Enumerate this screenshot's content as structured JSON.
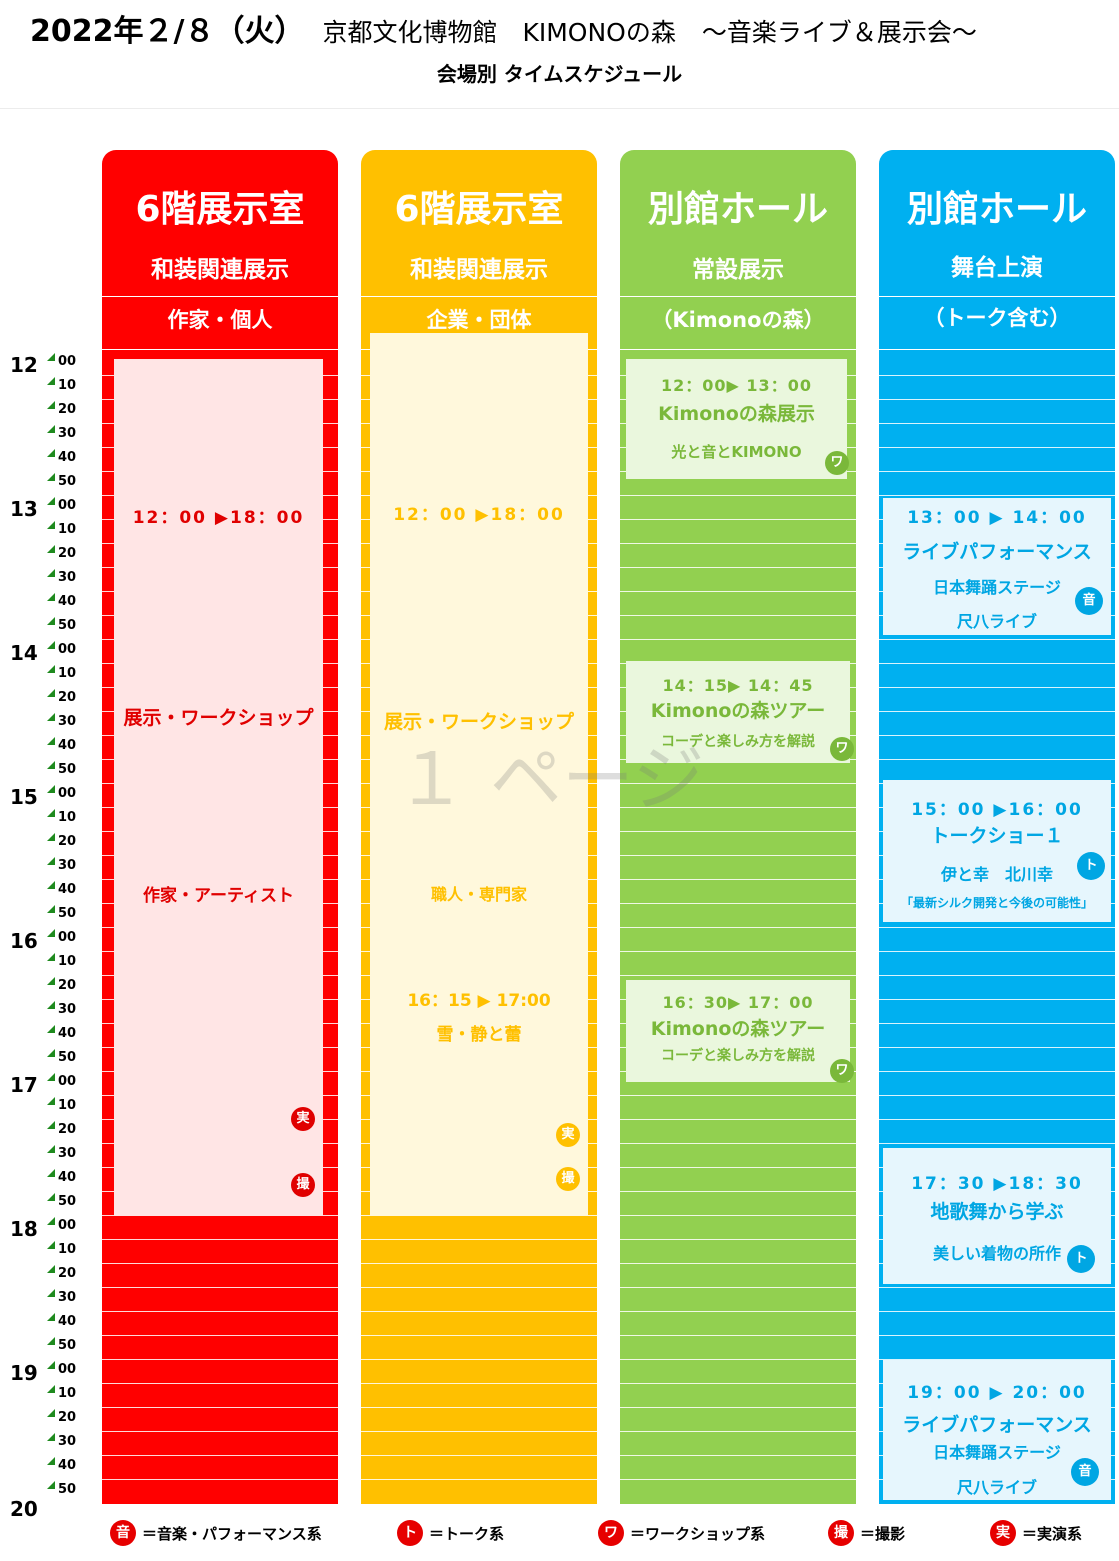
{
  "header": {
    "date": "2022年２/８（火）",
    "venue": "京都文化博物館　KIMONOの森",
    "event": "～音楽ライブ＆展示会～",
    "subtitle": "会場別 タイムスケジュール"
  },
  "watermark": "１ ページ",
  "colors": {
    "A": "#ff0000",
    "B": "#ffc000",
    "C": "#92d050",
    "D": "#00b0f0",
    "tick": "#1e8a1e"
  },
  "time_axis": {
    "hours": [
      "12",
      "13",
      "14",
      "15",
      "16",
      "17",
      "18",
      "19",
      "20"
    ],
    "minutes": [
      "00",
      "10",
      "20",
      "30",
      "40",
      "50"
    ]
  },
  "columns": [
    {
      "id": "A",
      "letter": "A",
      "room": "6階展示室",
      "category": "和装関連展示",
      "subcategory": "作家・個人",
      "event": {
        "time": "12：00 ▶18：00",
        "title": "展示・ワークショップ",
        "detail": "作家・アーティスト",
        "badge1": "実",
        "badge2": "撮"
      }
    },
    {
      "id": "B",
      "letter": "B",
      "room": "6階展示室",
      "category": "和装関連展示",
      "subcategory": "企業・団体",
      "event": {
        "time": "12：00 ▶18：00",
        "title": "展示・ワークショップ",
        "detail": "職人・専門家",
        "time2": "16：15 ▶ 17:00",
        "detail2": "雪・静と蕾",
        "badge1": "実",
        "badge2": "撮"
      }
    },
    {
      "id": "C",
      "letter": "C",
      "room": "別館ホール",
      "category": "常設展示",
      "subcategory": "（Kimonoの森）",
      "events": [
        {
          "time": "12：00▶ 13：00",
          "title": "Kimonoの森展示",
          "detail": "光と音とKIMONO",
          "badge": "ワ"
        },
        {
          "time": "14：15▶ 14：45",
          "title": "Kimonoの森ツアー",
          "detail": "コーデと楽しみ方を解説",
          "badge": "ワ"
        },
        {
          "time": "16：30▶ 17：00",
          "title": "Kimonoの森ツアー",
          "detail": "コーデと楽しみ方を解説",
          "badge": "ワ"
        }
      ]
    },
    {
      "id": "D",
      "letter": "D",
      "room": "別館ホール",
      "category": "舞台上演",
      "subcategory": "（トーク含む）",
      "events": [
        {
          "time": "13：00 ▶ 14：00",
          "title": "ライブパフォーマンス",
          "detail": "日本舞踊ステージ",
          "detail2": "尺八ライブ",
          "badge": "音"
        },
        {
          "time": "15：00 ▶16：00",
          "title": "トークショー１",
          "detail": "伊と幸　北川幸",
          "detail2": "「最新シルク開発と今後の可能性」",
          "badge": "ト"
        },
        {
          "time": "17：30 ▶18：30",
          "title": "地歌舞から学ぶ",
          "detail": "美しい着物の所作",
          "badge": "ト"
        },
        {
          "time": "19：00 ▶ 20：00",
          "title": "ライブパフォーマンス",
          "detail": "日本舞踊ステージ",
          "detail2": "尺八ライブ",
          "badge": "音"
        }
      ]
    }
  ],
  "legend": [
    {
      "icon": "音",
      "label": "＝音楽・パフォーマンス系"
    },
    {
      "icon": "ト",
      "label": "＝トーク系"
    },
    {
      "icon": "ワ",
      "label": "＝ワークショップ系"
    },
    {
      "icon": "撮",
      "label": "＝撮影"
    },
    {
      "icon": "実",
      "label": "＝実演系"
    }
  ]
}
